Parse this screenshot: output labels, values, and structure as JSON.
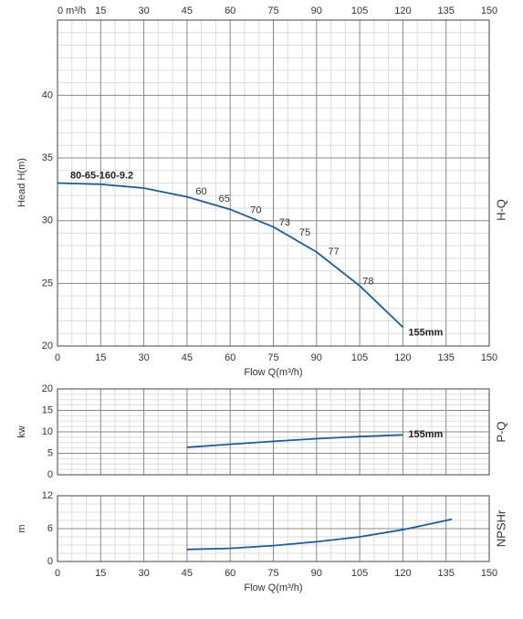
{
  "chart_data": [
    {
      "type": "line",
      "ylabel": "Head H(m)",
      "xlabel": "Flow Q(m³/h)",
      "side_label": "H-Q",
      "model_label": "80-65-160-9.2",
      "xlim": [
        0,
        150
      ],
      "xticks": [
        0,
        15,
        30,
        45,
        60,
        75,
        90,
        105,
        120,
        135,
        150
      ],
      "x2ticks": [
        {
          "value": 0,
          "label": "0 m³/h"
        },
        15,
        30,
        45,
        60,
        75,
        90,
        105,
        120,
        135,
        150
      ],
      "ylim": [
        20,
        46
      ],
      "yticks": [
        20,
        25,
        30,
        35,
        40
      ],
      "grid": true,
      "series": [
        {
          "name": "155mm",
          "color": "#1f5c99",
          "x": [
            0,
            15,
            30,
            45,
            60,
            75,
            90,
            105,
            120
          ],
          "values": [
            33.0,
            32.9,
            32.6,
            31.9,
            30.9,
            29.5,
            27.5,
            24.8,
            21.5
          ]
        }
      ],
      "efficiency": {
        "x": [
          48,
          56,
          67,
          77,
          84,
          94,
          106
        ],
        "y": [
          31.8,
          31.2,
          30.3,
          29.3,
          28.5,
          27.0,
          24.6
        ],
        "values": [
          60,
          65,
          70,
          73,
          75,
          77,
          78
        ]
      }
    },
    {
      "type": "line",
      "ylabel": "kw",
      "side_label": "P-Q",
      "xlim": [
        0,
        150
      ],
      "xticks": [
        0,
        15,
        30,
        45,
        60,
        75,
        90,
        105,
        120,
        135,
        150
      ],
      "ylim": [
        0,
        20
      ],
      "yticks": [
        0,
        5,
        10,
        15,
        20
      ],
      "grid": true,
      "series": [
        {
          "name": "155mm",
          "color": "#1f5c99",
          "x": [
            45,
            60,
            75,
            90,
            105,
            120
          ],
          "values": [
            6.4,
            7.1,
            7.8,
            8.4,
            8.9,
            9.3
          ]
        }
      ]
    },
    {
      "type": "line",
      "ylabel": "m",
      "xlabel": "Flow Q(m³/h)",
      "side_label": "NPSHr",
      "xlim": [
        0,
        150
      ],
      "xticks": [
        0,
        15,
        30,
        45,
        60,
        75,
        90,
        105,
        120,
        135,
        150
      ],
      "ylim": [
        0,
        12
      ],
      "yticks": [
        0,
        6,
        12
      ],
      "grid": true,
      "series": [
        {
          "color": "#1f5c99",
          "x": [
            45,
            60,
            75,
            90,
            105,
            120,
            137
          ],
          "values": [
            2.2,
            2.4,
            2.9,
            3.6,
            4.5,
            5.8,
            7.7
          ]
        }
      ]
    }
  ]
}
